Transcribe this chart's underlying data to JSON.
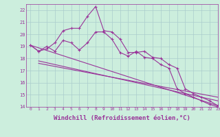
{
  "background_color": "#cceedd",
  "grid_color": "#aacccc",
  "line_color": "#993399",
  "xlabel": "Windchill (Refroidissement éolien,°C)",
  "xlabel_fontsize": 6.5,
  "ytick_labels": [
    "14",
    "15",
    "16",
    "17",
    "18",
    "19",
    "20",
    "21",
    "22"
  ],
  "ytick_values": [
    14,
    15,
    16,
    17,
    18,
    19,
    20,
    21,
    22
  ],
  "xtick_values": [
    0,
    1,
    2,
    3,
    4,
    5,
    6,
    7,
    8,
    9,
    10,
    11,
    12,
    13,
    14,
    15,
    16,
    17,
    18,
    19,
    20,
    21,
    22,
    23
  ],
  "line1_x": [
    0,
    1,
    2,
    3,
    4,
    5,
    6,
    7,
    8,
    9,
    10,
    11,
    12,
    13,
    14,
    15,
    16,
    17,
    18,
    19,
    20,
    21,
    22,
    23
  ],
  "line1_y": [
    19.1,
    18.6,
    18.8,
    19.3,
    20.3,
    20.5,
    20.5,
    21.5,
    22.3,
    20.3,
    20.2,
    19.6,
    18.5,
    18.5,
    18.6,
    18.1,
    18.0,
    17.5,
    17.2,
    15.5,
    15.1,
    14.8,
    14.5,
    14.1
  ],
  "line2_x": [
    0,
    1,
    2,
    3,
    4,
    5,
    6,
    7,
    8,
    9,
    10,
    11,
    12,
    13,
    14,
    15,
    16,
    17,
    18,
    19,
    20,
    21,
    22,
    23
  ],
  "line2_y": [
    19.1,
    18.6,
    19.0,
    18.6,
    19.5,
    19.3,
    18.7,
    19.3,
    20.2,
    20.2,
    19.6,
    18.5,
    18.2,
    18.6,
    18.1,
    18.0,
    17.5,
    17.2,
    15.5,
    15.1,
    14.8,
    14.5,
    14.2,
    14.0
  ],
  "line3_x": [
    0,
    23
  ],
  "line3_y": [
    19.1,
    14.1
  ],
  "line4_x": [
    1,
    23
  ],
  "line4_y": [
    17.8,
    14.5
  ],
  "line5_x": [
    1,
    23
  ],
  "line5_y": [
    17.6,
    14.8
  ],
  "xmin": -0.5,
  "xmax": 23,
  "ymin": 14,
  "ymax": 22.5
}
